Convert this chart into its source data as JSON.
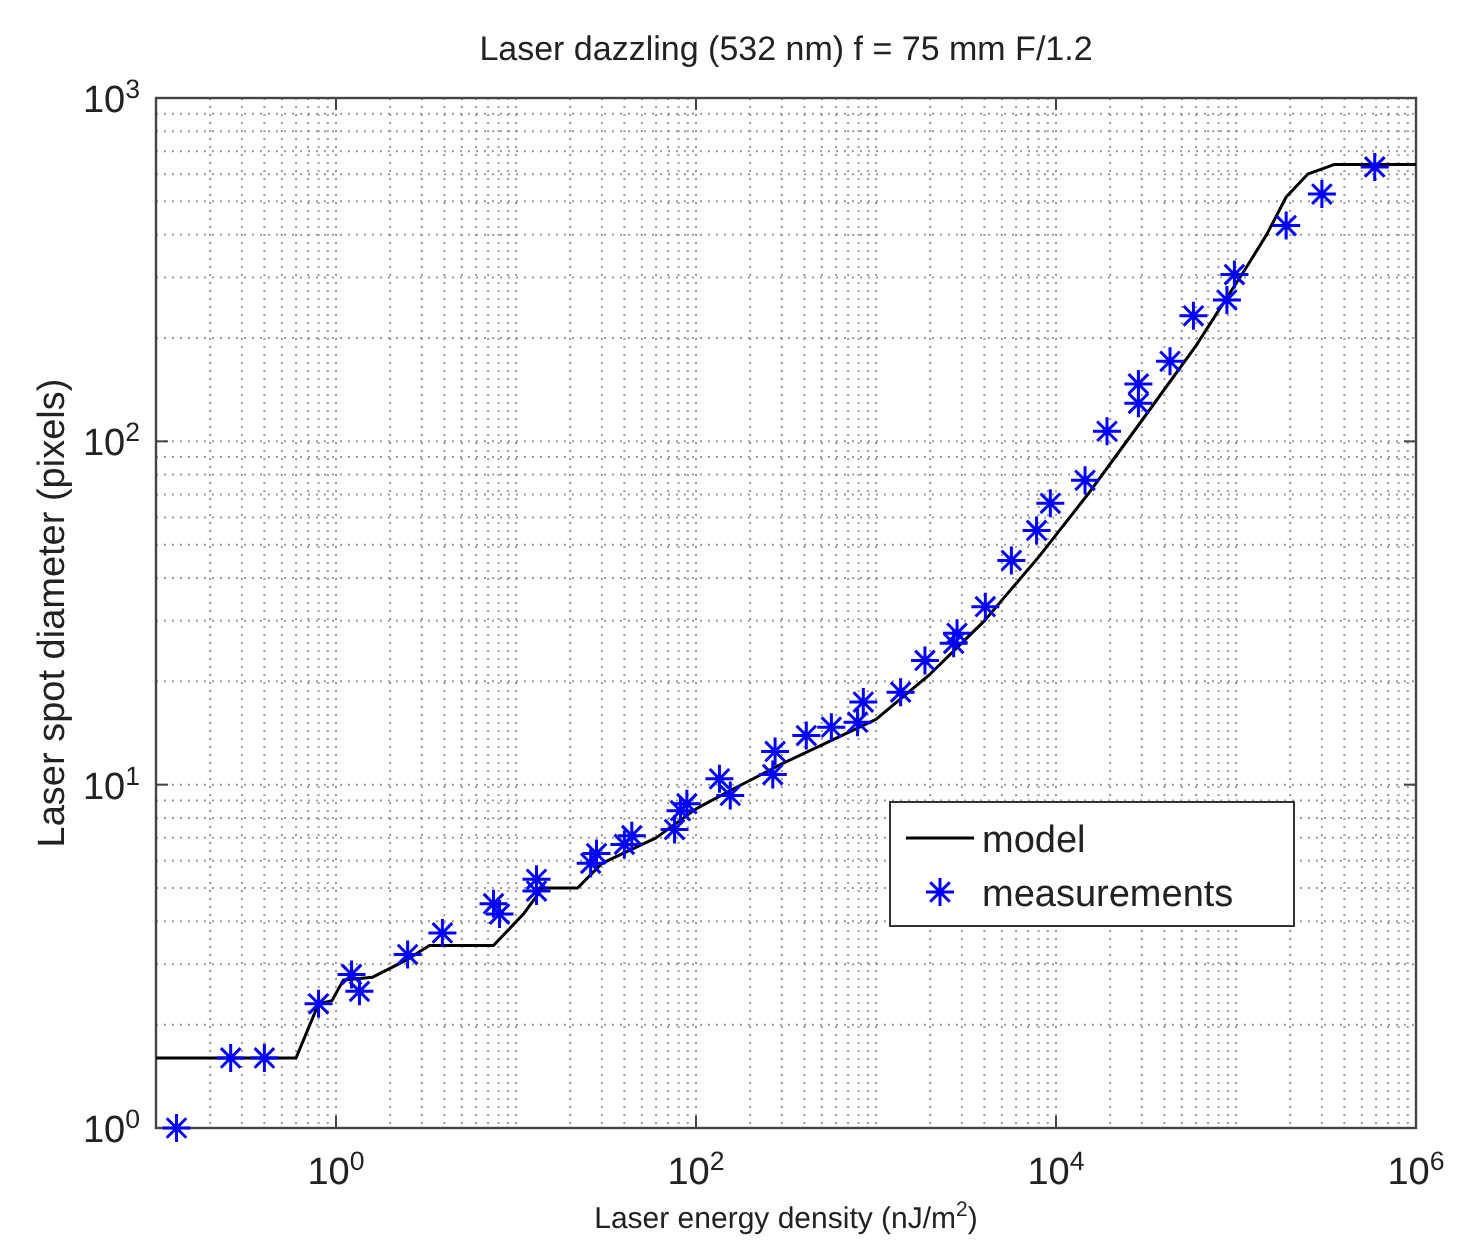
{
  "chart_data": {
    "type": "line",
    "title": "Laser dazzling (532 nm) f = 75 mm F/1.2",
    "xlabel": "Laser energy density (nJ/m$^{2}$)",
    "ylabel": "Laser spot diameter (pixels)",
    "log": "xy",
    "grid": true,
    "legend": "bottom right",
    "xlim": [
      0.1,
      1000000
    ],
    "xticks": [
      {
        "value": 1,
        "label": "10$^{0}$"
      },
      {
        "value": 100,
        "label": "10$^{2}$"
      },
      {
        "value": 10000,
        "label": "10$^{4}$"
      },
      {
        "value": 1000000,
        "label": "10$^{6}$"
      }
    ],
    "ylim": [
      1,
      1000
    ],
    "yticks": [
      {
        "value": 1,
        "label": "10$^{0}$"
      },
      {
        "value": 10,
        "label": "10$^{1}$"
      },
      {
        "value": 100,
        "label": "10$^{2}$"
      },
      {
        "value": 1000,
        "label": "10$^{3}$"
      }
    ],
    "series": [
      {
        "name": "model",
        "color": "#000000",
        "marker": "none",
        "line_style": "solid",
        "x": [
          0.1,
          0.6,
          0.8,
          0.95,
          1.1,
          1.6,
          2.5,
          3.3,
          7.5,
          11,
          14,
          22,
          30,
          60,
          100,
          160,
          300,
          1000,
          2000,
          4000,
          8000,
          15000,
          30000,
          60000,
          115000,
          148000,
          190000,
          250000,
          350000,
          1000000
        ],
        "values": [
          1.6,
          1.6,
          2.3,
          2.35,
          2.7,
          2.75,
          3.1,
          3.4,
          3.4,
          4.2,
          5.0,
          5.0,
          5.9,
          7.0,
          8.5,
          9.7,
          11.5,
          15.5,
          21,
          30,
          46,
          70,
          115,
          190,
          323,
          400,
          515,
          600,
          640,
          640
        ]
      },
      {
        "name": "measurements",
        "type": "scatter",
        "color": "#0000ff",
        "marker": "cross",
        "x": [
          0.13,
          0.26,
          0.4,
          0.8,
          1.22,
          1.35,
          2.5,
          3.9,
          7.5,
          8.1,
          13,
          13,
          26,
          28,
          40,
          44,
          76,
          82,
          89,
          135,
          155,
          267,
          275,
          410,
          565,
          790,
          850,
          1370,
          1870,
          2700,
          2820,
          4050,
          5650,
          7800,
          9300,
          14500,
          19200,
          28700,
          28700,
          43000,
          58000,
          89000,
          98000,
          190000,
          300000,
          590000
        ],
        "values": [
          1,
          1.6,
          1.6,
          2.3,
          2.8,
          2.5,
          3.2,
          3.7,
          4.5,
          4.2,
          5.3,
          4.9,
          5.9,
          6.3,
          6.7,
          7.1,
          7.4,
          8.4,
          8.8,
          10.4,
          9.3,
          10.7,
          12.5,
          13.9,
          14.7,
          15.2,
          17.4,
          18.6,
          23,
          25.8,
          27.6,
          33,
          45,
          55,
          66,
          77,
          107,
          129,
          147,
          171,
          232,
          258,
          306,
          425,
          525,
          630
        ]
      }
    ]
  }
}
